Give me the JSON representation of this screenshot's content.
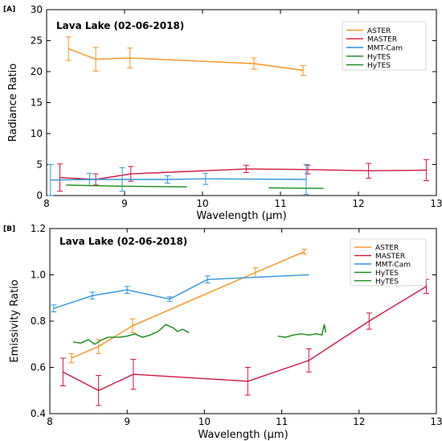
{
  "chart_data": [
    {
      "panel_label": "[A]",
      "type": "line",
      "title": "Lava Lake (02-06-2018)",
      "xlabel": "Wavelength (µm)",
      "ylabel": "Radiance Ratio",
      "xlim": [
        8,
        13
      ],
      "ylim": [
        0,
        30
      ],
      "xticks": [
        8,
        9,
        10,
        11,
        12,
        13
      ],
      "yticks": [
        0,
        5,
        10,
        15,
        20,
        25,
        30
      ],
      "grid": false,
      "legend_position": "top-right",
      "series": [
        {
          "name": "ASTER",
          "color": "#f7931e",
          "points": [
            [
              8.28,
              23.7
            ],
            [
              8.63,
              22.0
            ],
            [
              9.07,
              22.2
            ],
            [
              10.66,
              21.3
            ],
            [
              11.29,
              20.2
            ]
          ],
          "errors": [
            1.9,
            1.9,
            1.6,
            0.9,
            0.8
          ]
        },
        {
          "name": "MASTER",
          "color": "#d3163f",
          "points": [
            [
              8.17,
              2.9
            ],
            [
              8.63,
              2.6
            ],
            [
              9.08,
              3.5
            ],
            [
              10.56,
              4.3
            ],
            [
              11.35,
              4.2
            ],
            [
              12.13,
              4.0
            ],
            [
              12.87,
              4.1
            ]
          ],
          "errors": [
            2.2,
            0.9,
            1.2,
            0.6,
            0.7,
            1.2,
            1.7
          ]
        },
        {
          "name": "MMT-Cam",
          "color": "#2f96dc",
          "points": [
            [
              8.05,
              2.5
            ],
            [
              8.55,
              2.6
            ],
            [
              8.97,
              2.6
            ],
            [
              9.55,
              2.6
            ],
            [
              10.04,
              2.7
            ],
            [
              11.33,
              2.6
            ]
          ],
          "errors": [
            2.5,
            1.0,
            1.9,
            0.6,
            0.9,
            2.4
          ]
        },
        {
          "name": "HyTES",
          "color": "#168a17",
          "points": [
            [
              8.25,
              1.7
            ],
            [
              8.6,
              1.6
            ],
            [
              9.0,
              1.5
            ],
            [
              9.4,
              1.45
            ],
            [
              9.8,
              1.4
            ]
          ],
          "errors": []
        },
        {
          "name": "HyTES",
          "color": "#168a17",
          "points": [
            [
              10.85,
              1.25
            ],
            [
              11.2,
              1.2
            ],
            [
              11.55,
              1.15
            ]
          ],
          "errors": []
        }
      ]
    },
    {
      "panel_label": "[B]",
      "type": "line",
      "title": "Lava Lake (02-06-2018)",
      "xlabel": "Wavelength (µm)",
      "ylabel": "Emissivity Ratio",
      "xlim": [
        8,
        13
      ],
      "ylim": [
        0.4,
        1.2
      ],
      "xticks": [
        8,
        9,
        10,
        11,
        12,
        13
      ],
      "yticks": [
        0.4,
        0.6,
        0.8,
        1.0,
        1.2
      ],
      "grid": false,
      "legend_position": "top-right",
      "series": [
        {
          "name": "ASTER",
          "color": "#f7931e",
          "points": [
            [
              8.28,
              0.64
            ],
            [
              8.63,
              0.69
            ],
            [
              9.07,
              0.78
            ],
            [
              10.66,
              1.01
            ],
            [
              11.29,
              1.1
            ]
          ],
          "errors": [
            0.02,
            0.03,
            0.03,
            0.02,
            0.01
          ]
        },
        {
          "name": "MASTER",
          "color": "#d3163f",
          "points": [
            [
              8.17,
              0.58
            ],
            [
              8.63,
              0.5
            ],
            [
              9.08,
              0.57
            ],
            [
              10.56,
              0.54
            ],
            [
              11.35,
              0.63
            ],
            [
              12.13,
              0.8
            ],
            [
              12.87,
              0.95
            ]
          ],
          "errors": [
            0.06,
            0.065,
            0.065,
            0.06,
            0.05,
            0.035,
            0.03
          ]
        },
        {
          "name": "MMT-Cam",
          "color": "#2f96dc",
          "points": [
            [
              8.05,
              0.855
            ],
            [
              8.55,
              0.91
            ],
            [
              9.0,
              0.935
            ],
            [
              9.55,
              0.895
            ],
            [
              10.04,
              0.98
            ],
            [
              11.35,
              1.0
            ]
          ],
          "errors": [
            0.015,
            0.015,
            0.015,
            0.01,
            0.015,
            0
          ]
        },
        {
          "name": "HyTES",
          "color": "#168a17",
          "points": [
            [
              8.3,
              0.71
            ],
            [
              8.4,
              0.705
            ],
            [
              8.5,
              0.72
            ],
            [
              8.58,
              0.7
            ],
            [
              8.65,
              0.715
            ],
            [
              8.75,
              0.73
            ],
            [
              8.9,
              0.73
            ],
            [
              9.0,
              0.735
            ],
            [
              9.1,
              0.745
            ],
            [
              9.2,
              0.73
            ],
            [
              9.3,
              0.74
            ],
            [
              9.4,
              0.755
            ],
            [
              9.5,
              0.785
            ],
            [
              9.6,
              0.77
            ],
            [
              9.65,
              0.755
            ],
            [
              9.72,
              0.765
            ],
            [
              9.8,
              0.75
            ]
          ],
          "errors": []
        },
        {
          "name": "HyTES",
          "color": "#168a17",
          "points": [
            [
              10.95,
              0.735
            ],
            [
              11.05,
              0.73
            ],
            [
              11.15,
              0.74
            ],
            [
              11.25,
              0.745
            ],
            [
              11.35,
              0.74
            ],
            [
              11.45,
              0.745
            ],
            [
              11.52,
              0.74
            ],
            [
              11.55,
              0.785
            ],
            [
              11.57,
              0.75
            ]
          ],
          "errors": []
        }
      ]
    }
  ]
}
